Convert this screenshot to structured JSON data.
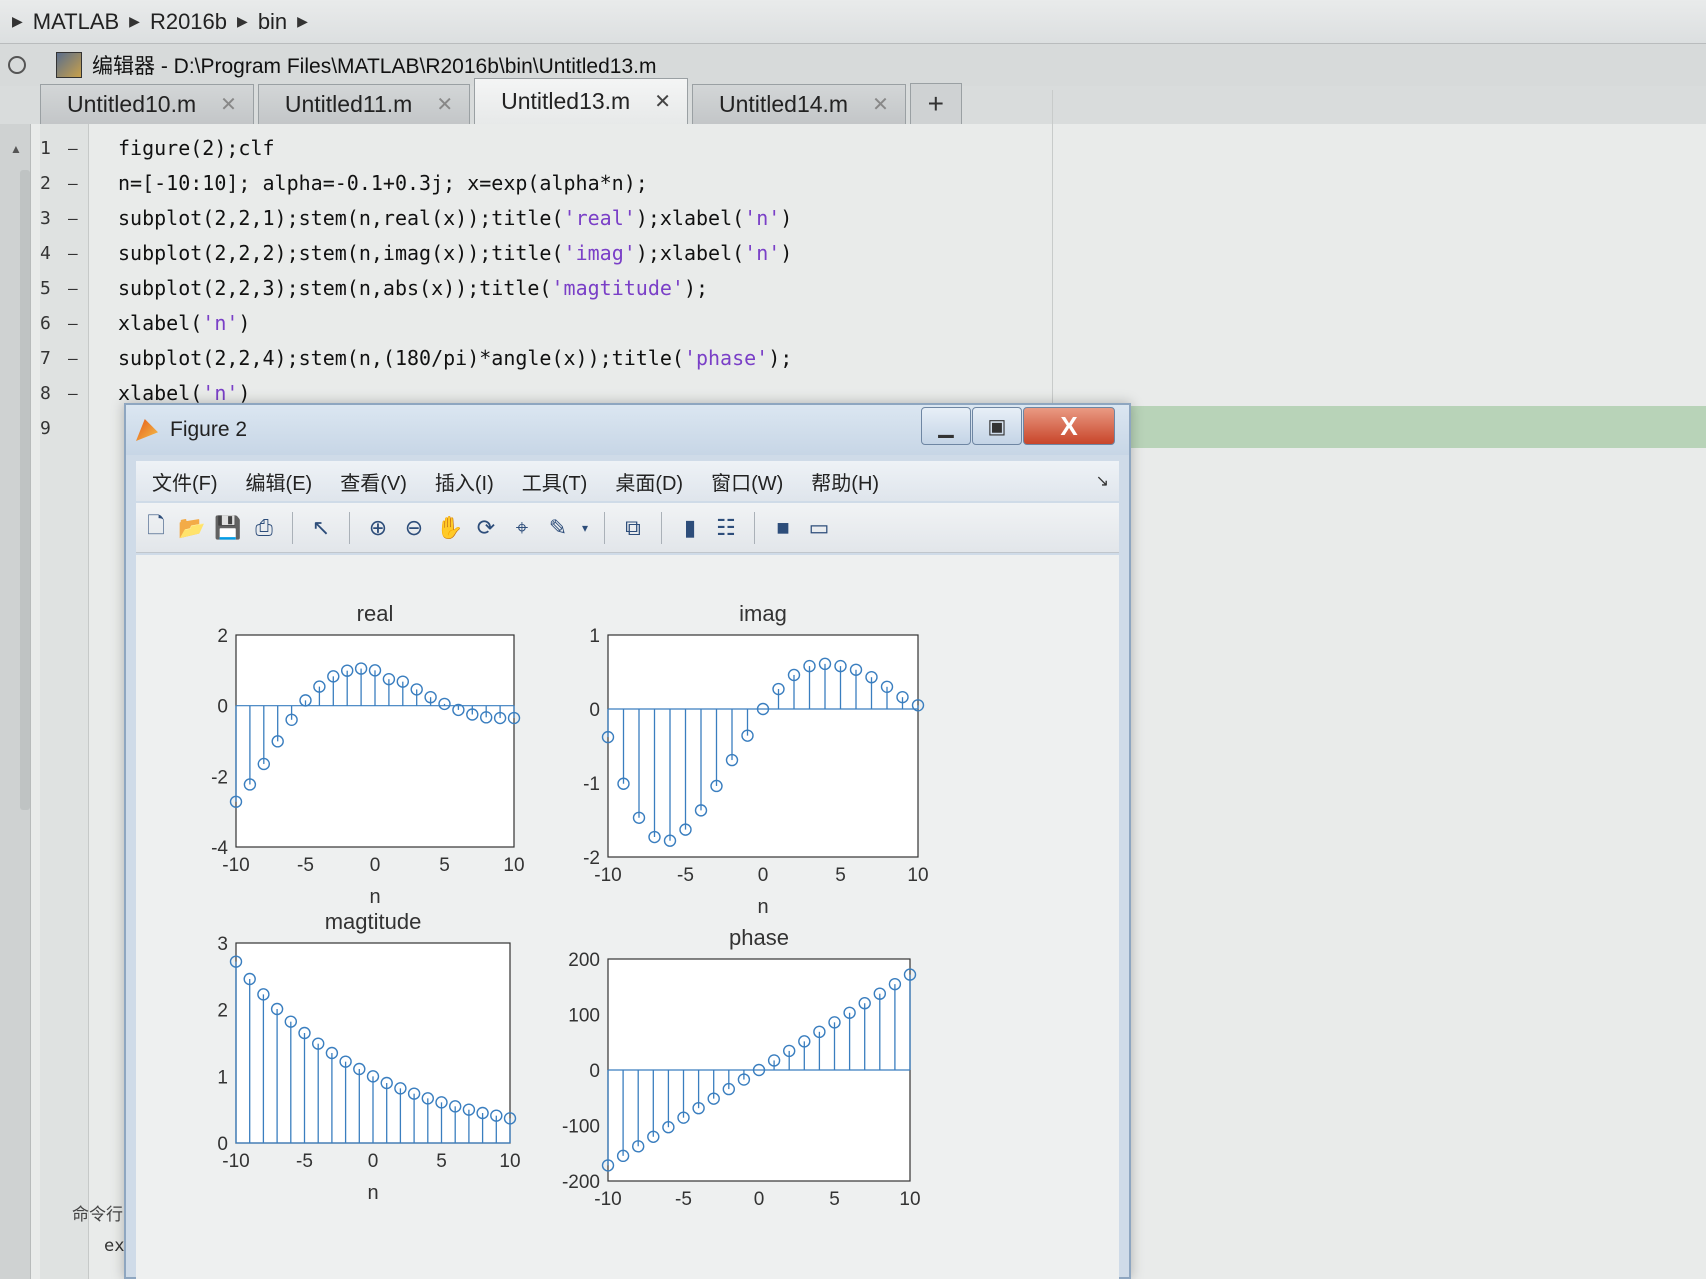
{
  "breadcrumb": [
    "MATLAB",
    "R2016b",
    "bin"
  ],
  "editor": {
    "title": "编辑器 - D:\\Program Files\\MATLAB\\R2016b\\bin\\Untitled13.m",
    "tabs": [
      {
        "label": "Untitled10.m"
      },
      {
        "label": "Untitled11.m"
      },
      {
        "label": "Untitled13.m",
        "active": true
      },
      {
        "label": "Untitled14.m"
      }
    ],
    "close_glyph": "✕",
    "add_tab": "+",
    "lines": [
      {
        "n": "1",
        "mark": "–",
        "code": "figure(2);clf"
      },
      {
        "n": "2",
        "mark": "–",
        "code": "n=[-10:10]; alpha=-0.1+0.3j; x=exp(alpha*n);"
      },
      {
        "n": "3",
        "mark": "–",
        "code": "subplot(2,2,1);stem(n,real(x));title('real');xlabel('n')"
      },
      {
        "n": "4",
        "mark": "–",
        "code": "subplot(2,2,2);stem(n,imag(x));title('imag');xlabel('n')"
      },
      {
        "n": "5",
        "mark": "–",
        "code": "subplot(2,2,3);stem(n,abs(x));title('magtitude');"
      },
      {
        "n": "6",
        "mark": "–",
        "code": "xlabel('n')"
      },
      {
        "n": "7",
        "mark": "–",
        "code": "subplot(2,2,4);stem(n,(180/pi)*angle(x));title('phase');"
      },
      {
        "n": "8",
        "mark": "–",
        "code": "xlabel('n')"
      },
      {
        "n": "9",
        "mark": "",
        "code": ""
      }
    ]
  },
  "command": {
    "label": "命令行窗",
    "prompt": "ex ="
  },
  "figure": {
    "title": "Figure 2",
    "window_buttons": {
      "minimize": "▁",
      "maximize": "▣",
      "close": "X"
    },
    "menu": [
      "文件(F)",
      "编辑(E)",
      "查看(V)",
      "插入(I)",
      "工具(T)",
      "桌面(D)",
      "窗口(W)",
      "帮助(H)"
    ],
    "dock_arrow": "↘",
    "toolbar_icons": [
      "new-figure-icon",
      "open-file-icon",
      "save-icon",
      "print-icon",
      "pointer-icon",
      "zoom-in-icon",
      "zoom-out-icon",
      "pan-icon",
      "rotate-icon",
      "data-cursor-icon",
      "brush-icon",
      "link-icon",
      "colorbar-icon",
      "legend-icon",
      "hide-plot-tools-icon",
      "show-plot-tools-icon"
    ],
    "stem_color": "#3a7ebf"
  },
  "chart_data": [
    {
      "type": "stem",
      "title": "real",
      "xlabel": "n",
      "ylabel": "",
      "xlim": [
        -10,
        10
      ],
      "ylim": [
        -4,
        2
      ],
      "xticks": [
        "-10",
        "-5",
        "0",
        "5",
        "10"
      ],
      "yticks": [
        "-4",
        "-2",
        "0",
        "2"
      ],
      "x": [
        -10,
        -9,
        -8,
        -7,
        -6,
        -5,
        -4,
        -3,
        -2,
        -1,
        0,
        1,
        2,
        3,
        4,
        5,
        6,
        7,
        8,
        9,
        10
      ],
      "values": [
        -2.72,
        -2.23,
        -1.65,
        -1.01,
        -0.4,
        0.15,
        0.54,
        0.83,
        0.99,
        1.05,
        1.0,
        0.75,
        0.68,
        0.46,
        0.24,
        0.05,
        -0.12,
        -0.25,
        -0.33,
        -0.35,
        -0.35
      ]
    },
    {
      "type": "stem",
      "title": "imag",
      "xlabel": "n",
      "ylabel": "",
      "xlim": [
        -10,
        10
      ],
      "ylim": [
        -2,
        1
      ],
      "xticks": [
        "-10",
        "-5",
        "0",
        "5",
        "10"
      ],
      "yticks": [
        "-2",
        "-1",
        "0",
        "1"
      ],
      "x": [
        -10,
        -9,
        -8,
        -7,
        -6,
        -5,
        -4,
        -3,
        -2,
        -1,
        0,
        1,
        2,
        3,
        4,
        5,
        6,
        7,
        8,
        9,
        10
      ],
      "values": [
        -0.38,
        -1.01,
        -1.47,
        -1.73,
        -1.78,
        -1.63,
        -1.37,
        -1.04,
        -0.69,
        -0.36,
        0.0,
        0.27,
        0.46,
        0.58,
        0.61,
        0.58,
        0.53,
        0.43,
        0.3,
        0.16,
        0.05
      ]
    },
    {
      "type": "stem",
      "title": "magtitude",
      "xlabel": "n",
      "ylabel": "",
      "xlim": [
        -10,
        10
      ],
      "ylim": [
        0,
        3
      ],
      "xticks": [
        "-10",
        "-5",
        "0",
        "5",
        "10"
      ],
      "yticks": [
        "0",
        "1",
        "2",
        "3"
      ],
      "x": [
        -10,
        -9,
        -8,
        -7,
        -6,
        -5,
        -4,
        -3,
        -2,
        -1,
        0,
        1,
        2,
        3,
        4,
        5,
        6,
        7,
        8,
        9,
        10
      ],
      "values": [
        2.72,
        2.46,
        2.23,
        2.01,
        1.82,
        1.65,
        1.49,
        1.35,
        1.22,
        1.11,
        1.0,
        0.9,
        0.82,
        0.74,
        0.67,
        0.61,
        0.55,
        0.5,
        0.45,
        0.41,
        0.37
      ]
    },
    {
      "type": "stem",
      "title": "phase",
      "xlabel": "",
      "ylabel": "",
      "xlim": [
        -10,
        10
      ],
      "ylim": [
        -200,
        200
      ],
      "xticks": [
        "-10",
        "-5",
        "0",
        "5",
        "10"
      ],
      "yticks": [
        "-200",
        "-100",
        "0",
        "100",
        "200"
      ],
      "x": [
        -10,
        -9,
        -8,
        -7,
        -6,
        -5,
        -4,
        -3,
        -2,
        -1,
        0,
        1,
        2,
        3,
        4,
        5,
        6,
        7,
        8,
        9,
        10
      ],
      "values": [
        -171.9,
        -154.7,
        -137.5,
        -120.3,
        -103.1,
        -85.9,
        -68.8,
        -51.6,
        -34.4,
        -17.2,
        0,
        17.2,
        34.4,
        51.6,
        68.8,
        85.9,
        103.1,
        120.3,
        137.5,
        154.7,
        171.9
      ]
    }
  ]
}
